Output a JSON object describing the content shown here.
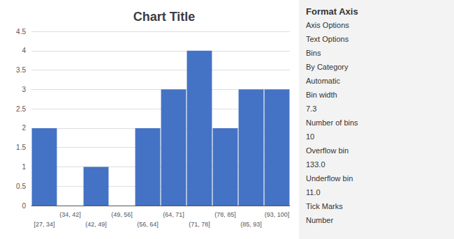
{
  "chart_data": {
    "type": "bar",
    "title": "Chart Title",
    "categories": [
      "[27, 34]",
      "(34, 42]",
      "(42, 49]",
      "(49, 56]",
      "(56, 64]",
      "(64, 71]",
      "(71, 78]",
      "(78, 85]",
      "(85, 93]",
      "(93, 100]"
    ],
    "values": [
      2,
      0,
      1,
      0,
      2,
      3,
      4,
      2,
      3,
      3
    ],
    "color": "#4472C4",
    "ylim": [
      0,
      4.5
    ],
    "yticks": [
      0,
      0.5,
      1,
      1.5,
      2,
      2.5,
      3,
      3.5,
      4,
      4.5
    ],
    "grid": true,
    "annotations": [
      "Format Axis",
      "Axis Options",
      "Text Options",
      "Bins",
      "By Category",
      "Automatic",
      "Bin width",
      "7.3",
      "Number of bins",
      "10",
      "Overflow bin",
      "133.0",
      "Underflow bin",
      "11.0",
      "Tick Marks",
      "Number"
    ]
  }
}
